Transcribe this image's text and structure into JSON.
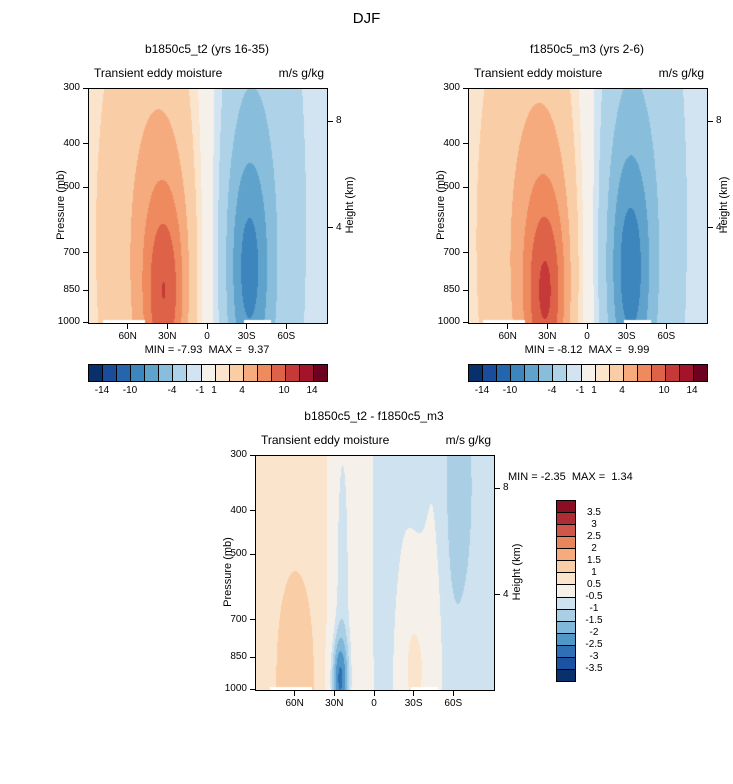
{
  "title": "DJF",
  "palettes": {
    "diverging17": [
      "#08316c",
      "#1a4c9c",
      "#2465ae",
      "#3d85bd",
      "#5fa3cd",
      "#88bedb",
      "#aed2e8",
      "#d2e4f2",
      "#f5f1ea",
      "#fbe4cc",
      "#f9cda6",
      "#f5ab7e",
      "#ee8a5e",
      "#dd6248",
      "#c53a38",
      "#a31329",
      "#6d0220"
    ],
    "diverging15": [
      "#08316c",
      "#1c52a2",
      "#2e6fb5",
      "#4f97c7",
      "#7fb8da",
      "#aacfe5",
      "#cfe2f0",
      "#f5f1ea",
      "#fbe4cc",
      "#f9cda6",
      "#f5ab7e",
      "#e8855c",
      "#d05649",
      "#b02c35",
      "#8a0f23"
    ]
  },
  "chart_data": [
    {
      "type": "filled-contour",
      "title": "b1850c5_t2 (yrs 16-35)",
      "field": "Transient eddy moisture",
      "units": "m/s g/kg",
      "ylabel": "Pressure (mb)",
      "ylabel_right": "Height (km)",
      "minmax_label": "MIN = -7.93  MAX =  9.37",
      "min": -7.93,
      "max": 9.37,
      "x_range": {
        "left_lat": 90,
        "right_lat": -90
      },
      "y_range_mb": [
        300,
        1000
      ],
      "y_scale": "log-pressure",
      "x_ticks": [
        {
          "label": "60N",
          "lat": 60
        },
        {
          "label": "30N",
          "lat": 30
        },
        {
          "label": "0",
          "lat": 0
        },
        {
          "label": "30S",
          "lat": -30
        },
        {
          "label": "60S",
          "lat": -60
        }
      ],
      "y_ticks": [
        {
          "label": "300",
          "p": 300
        },
        {
          "label": "400",
          "p": 400
        },
        {
          "label": "500",
          "p": 500
        },
        {
          "label": "700",
          "p": 700
        },
        {
          "label": "850",
          "p": 850
        },
        {
          "label": "1000",
          "p": 1000
        }
      ],
      "height_ticks": [
        {
          "label": "8",
          "p": 356
        },
        {
          "label": "4",
          "p": 616
        }
      ],
      "levels": [
        -14,
        -12,
        -10,
        -8,
        -6,
        -4,
        -2,
        -1,
        1,
        2,
        4,
        6,
        8,
        10,
        12,
        14
      ],
      "colorbar_labels": [
        -14,
        -10,
        -4,
        -1,
        1,
        4,
        10,
        14
      ],
      "palette": "diverging17",
      "background": {
        "amp": 1.6,
        "lat_scale": 28
      },
      "blobs": [
        {
          "lat": 33,
          "p": 880,
          "amp": 5.4,
          "sigma_lat": 11,
          "sigma_logp": 0.16
        },
        {
          "lat": 35,
          "p": 650,
          "amp": 3.6,
          "sigma_lat": 24,
          "sigma_logp": 0.34
        },
        {
          "lat": -31,
          "p": 780,
          "amp": -4.6,
          "sigma_lat": 11,
          "sigma_logp": 0.18
        },
        {
          "lat": -30,
          "p": 600,
          "amp": -3.2,
          "sigma_lat": 22,
          "sigma_logp": 0.42
        }
      ],
      "surface_gaps": [
        {
          "lat_min": 48,
          "lat_max": 80,
          "p_min": 985
        },
        {
          "lat_min": -48,
          "lat_max": -27,
          "p_min": 985
        }
      ]
    },
    {
      "type": "filled-contour",
      "title": "f1850c5_m3 (yrs 2-6)",
      "field": "Transient eddy moisture",
      "units": "m/s g/kg",
      "ylabel": "Pressure (mb)",
      "ylabel_right": "Height (km)",
      "minmax_label": "MIN = -8.12  MAX =  9.99",
      "min": -8.12,
      "max": 9.99,
      "x_range": {
        "left_lat": 90,
        "right_lat": -90
      },
      "y_range_mb": [
        300,
        1000
      ],
      "y_scale": "log-pressure",
      "x_ticks": [
        {
          "label": "60N",
          "lat": 60
        },
        {
          "label": "30N",
          "lat": 30
        },
        {
          "label": "0",
          "lat": 0
        },
        {
          "label": "30S",
          "lat": -30
        },
        {
          "label": "60S",
          "lat": -60
        }
      ],
      "y_ticks": [
        {
          "label": "300",
          "p": 300
        },
        {
          "label": "400",
          "p": 400
        },
        {
          "label": "500",
          "p": 500
        },
        {
          "label": "700",
          "p": 700
        },
        {
          "label": "850",
          "p": 850
        },
        {
          "label": "1000",
          "p": 1000
        }
      ],
      "height_ticks": [
        {
          "label": "8",
          "p": 356
        },
        {
          "label": "4",
          "p": 616
        }
      ],
      "levels": [
        -14,
        -12,
        -10,
        -8,
        -6,
        -4,
        -2,
        -1,
        1,
        2,
        4,
        6,
        8,
        10,
        12,
        14
      ],
      "colorbar_labels": [
        -14,
        -10,
        -4,
        -1,
        1,
        4,
        10,
        14
      ],
      "palette": "diverging17",
      "background": {
        "amp": 1.6,
        "lat_scale": 28
      },
      "blobs": [
        {
          "lat": 32,
          "p": 880,
          "amp": 5.7,
          "sigma_lat": 11,
          "sigma_logp": 0.16
        },
        {
          "lat": 34,
          "p": 650,
          "amp": 3.8,
          "sigma_lat": 24,
          "sigma_logp": 0.34
        },
        {
          "lat": -32,
          "p": 780,
          "amp": -4.8,
          "sigma_lat": 11,
          "sigma_logp": 0.18
        },
        {
          "lat": -30,
          "p": 600,
          "amp": -3.4,
          "sigma_lat": 22,
          "sigma_logp": 0.42
        }
      ],
      "surface_gaps": [
        {
          "lat_min": 48,
          "lat_max": 80,
          "p_min": 985
        },
        {
          "lat_min": -48,
          "lat_max": -27,
          "p_min": 985
        }
      ]
    },
    {
      "type": "filled-contour",
      "title": "b1850c5_t2 - f1850c5_m3",
      "field": "Transient eddy moisture",
      "units": "m/s g/kg",
      "ylabel": "Pressure (mb)",
      "ylabel_right": "Height (km)",
      "minmax_label": "MIN = -2.35  MAX =  1.34",
      "min": -2.35,
      "max": 1.34,
      "x_range": {
        "left_lat": 90,
        "right_lat": -90
      },
      "y_range_mb": [
        300,
        1000
      ],
      "y_scale": "log-pressure",
      "x_ticks": [
        {
          "label": "60N",
          "lat": 60
        },
        {
          "label": "30N",
          "lat": 30
        },
        {
          "label": "0",
          "lat": 0
        },
        {
          "label": "30S",
          "lat": -30
        },
        {
          "label": "60S",
          "lat": -60
        }
      ],
      "y_ticks": [
        {
          "label": "300",
          "p": 300
        },
        {
          "label": "400",
          "p": 400
        },
        {
          "label": "500",
          "p": 500
        },
        {
          "label": "700",
          "p": 700
        },
        {
          "label": "850",
          "p": 850
        },
        {
          "label": "1000",
          "p": 1000
        }
      ],
      "height_ticks": [
        {
          "label": "8",
          "p": 356
        },
        {
          "label": "4",
          "p": 616
        }
      ],
      "levels": [
        -3.5,
        -3,
        -2.5,
        -2,
        -1.5,
        -1,
        -0.5,
        0.5,
        1,
        1.5,
        2,
        2.5,
        3,
        3.5
      ],
      "colorbar_labels": [
        3.5,
        3,
        2.5,
        2,
        1.5,
        1,
        0.5,
        -0.5,
        -1,
        -1.5,
        -2,
        -2.5,
        -3,
        -3.5
      ],
      "palette": "diverging15",
      "background": {
        "amp": 0.75,
        "lat_scale": 25
      },
      "blobs": [
        {
          "lat": 27,
          "p": 950,
          "amp": -2.1,
          "sigma_lat": 5,
          "sigma_logp": 0.07
        },
        {
          "lat": 25,
          "p": 600,
          "amp": -1.3,
          "sigma_lat": 6,
          "sigma_logp": 0.45
        },
        {
          "lat": -5,
          "p": 500,
          "amp": -0.8,
          "sigma_lat": 8,
          "sigma_logp": 0.5
        },
        {
          "lat": -30,
          "p": 900,
          "amp": 1.3,
          "sigma_lat": 9,
          "sigma_logp": 0.15
        },
        {
          "lat": 60,
          "p": 950,
          "amp": 0.55,
          "sigma_lat": 12,
          "sigma_logp": 0.2
        },
        {
          "lat": -60,
          "p": 350,
          "amp": -0.4,
          "sigma_lat": 14,
          "sigma_logp": 0.3
        },
        {
          "lat": -45,
          "p": 700,
          "amp": 0.45,
          "sigma_lat": 6,
          "sigma_logp": 0.5
        }
      ],
      "surface_gaps": [
        {
          "lat_min": 48,
          "lat_max": 80,
          "p_min": 985
        },
        {
          "lat_min": -48,
          "lat_max": -27,
          "p_min": 985
        }
      ]
    }
  ]
}
